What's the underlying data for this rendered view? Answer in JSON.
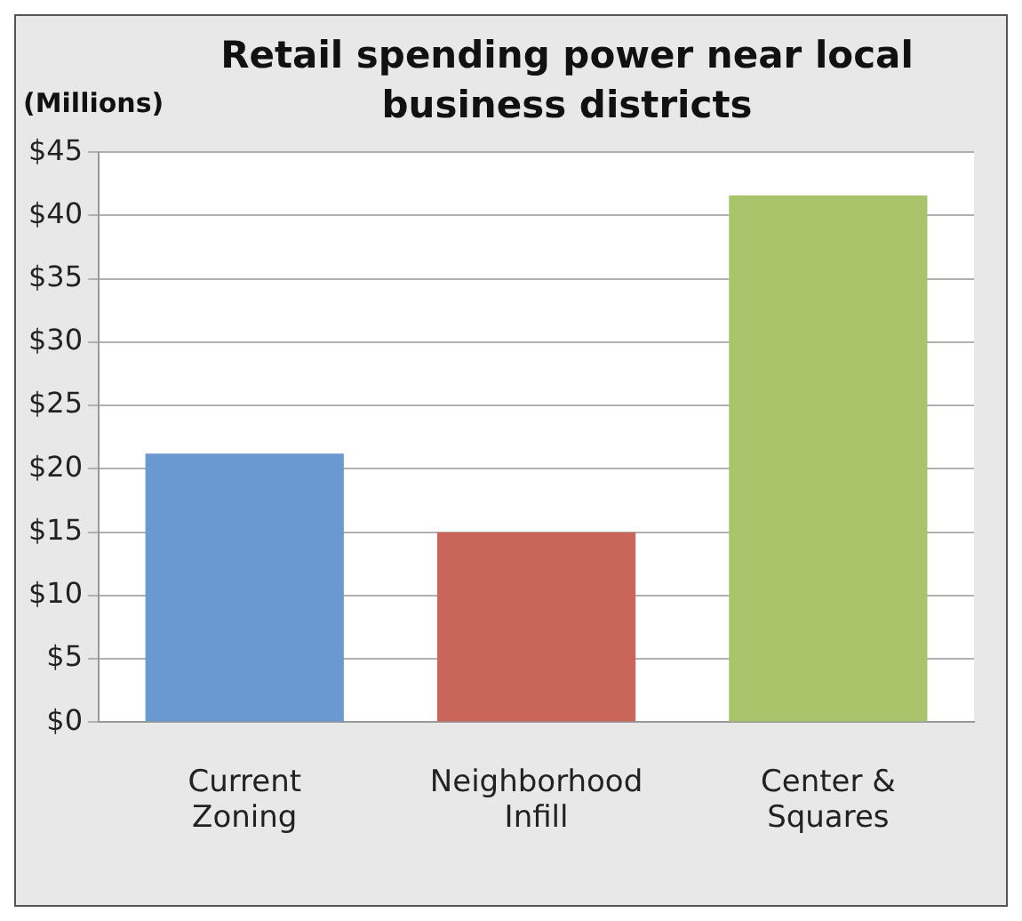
{
  "chart_data": {
    "type": "bar",
    "title": "Retail spending power near local business districts",
    "ylabel": "(Millions)",
    "categories": [
      "Current Zoning",
      "Neighborhood Infill",
      "Center & Squares"
    ],
    "values": [
      21.2,
      15,
      41.6
    ],
    "colors": [
      "#6a98d0",
      "#c9655a",
      "#a9c46a"
    ],
    "ylim": [
      0,
      45
    ],
    "yticks": [
      {
        "value": 0,
        "label": "$0"
      },
      {
        "value": 5,
        "label": "$5"
      },
      {
        "value": 10,
        "label": "$10"
      },
      {
        "value": 15,
        "label": "$15"
      },
      {
        "value": 20,
        "label": "$20"
      },
      {
        "value": 25,
        "label": "$25"
      },
      {
        "value": 30,
        "label": "$30"
      },
      {
        "value": 35,
        "label": "$35"
      },
      {
        "value": 40,
        "label": "$40"
      },
      {
        "value": 45,
        "label": "$45"
      }
    ],
    "grid": "y",
    "legend": false
  }
}
